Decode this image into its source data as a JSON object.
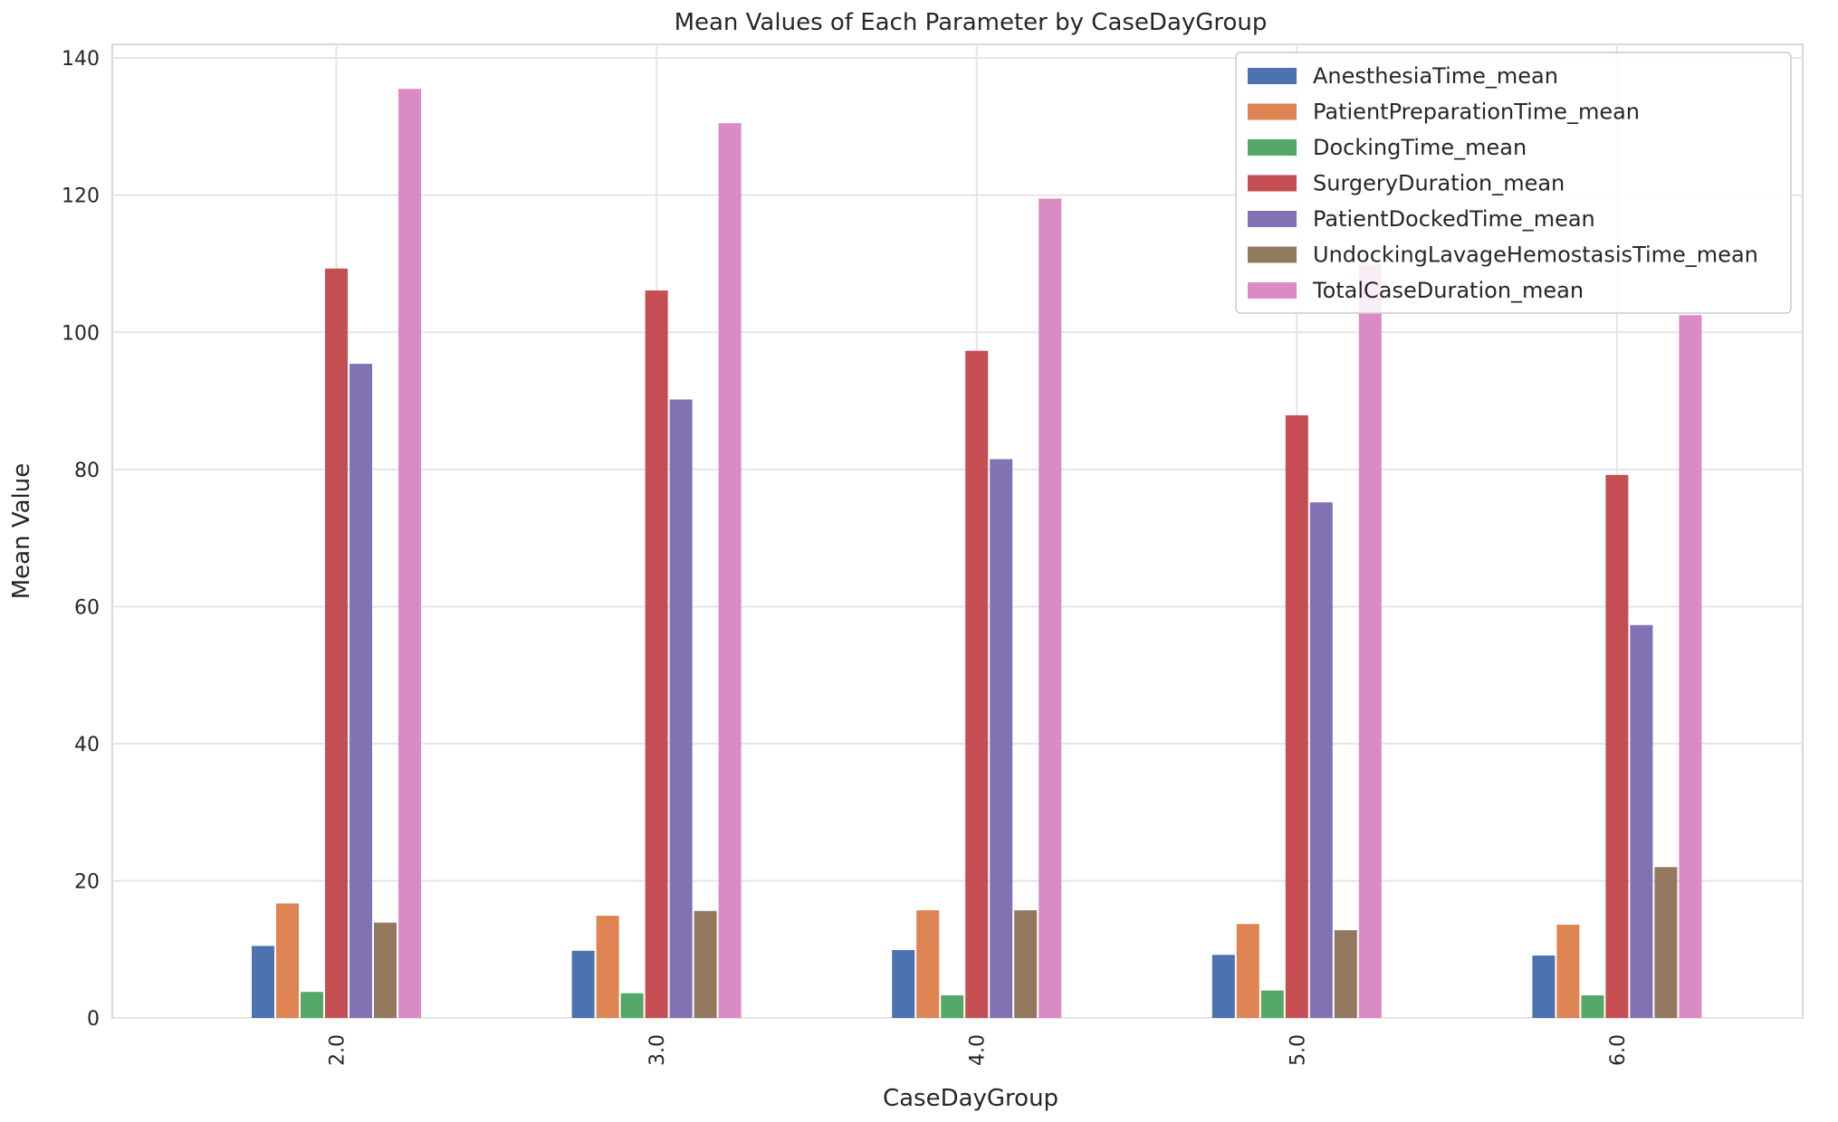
{
  "chart_data": {
    "type": "bar",
    "title": "Mean Values of Each Parameter by CaseDayGroup",
    "xlabel": "CaseDayGroup",
    "ylabel": "Mean Value",
    "categories": [
      "2.0",
      "3.0",
      "4.0",
      "5.0",
      "6.0"
    ],
    "ylim": [
      0,
      142
    ],
    "yticks": [
      0,
      20,
      40,
      60,
      80,
      100,
      120,
      140
    ],
    "grid": true,
    "legend_position": "top-right",
    "series": [
      {
        "name": "AnesthesiaTime_mean",
        "color": "#4c72b0",
        "values": [
          10.5,
          9.8,
          9.9,
          9.2,
          9.1
        ]
      },
      {
        "name": "PatientPreparationTime_mean",
        "color": "#dd8452",
        "values": [
          16.7,
          14.9,
          15.7,
          13.7,
          13.6
        ]
      },
      {
        "name": "DockingTime_mean",
        "color": "#55a868",
        "values": [
          3.8,
          3.6,
          3.3,
          4.0,
          3.3
        ]
      },
      {
        "name": "SurgeryDuration_mean",
        "color": "#c44e52",
        "values": [
          109.3,
          106.1,
          97.3,
          87.9,
          79.2
        ]
      },
      {
        "name": "PatientDockedTime_mean",
        "color": "#8172b3",
        "values": [
          95.4,
          90.2,
          81.5,
          75.2,
          57.3
        ]
      },
      {
        "name": "UndockingLavageHemostasisTime_mean",
        "color": "#937860",
        "values": [
          13.9,
          15.6,
          15.7,
          12.8,
          22.0
        ]
      },
      {
        "name": "TotalCaseDuration_mean",
        "color": "#da8bc3",
        "values": [
          135.5,
          130.5,
          119.5,
          109.9,
          102.5
        ]
      }
    ]
  }
}
